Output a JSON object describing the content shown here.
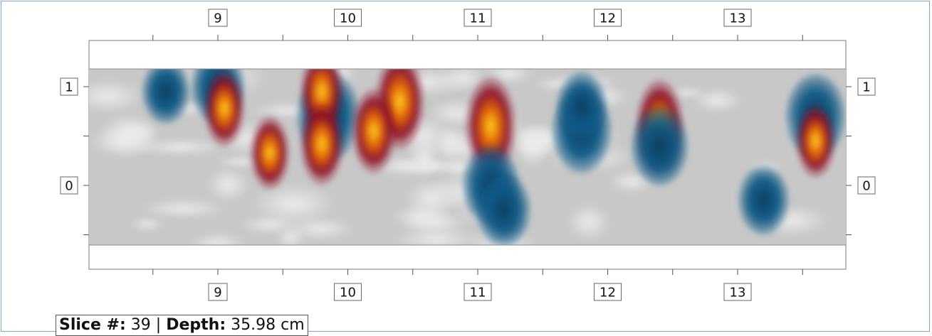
{
  "chart_data": {
    "type": "heatmap",
    "x_ticks": [
      9,
      10,
      11,
      12,
      13
    ],
    "y_ticks": [
      0,
      1
    ],
    "xlim": [
      7.55,
      13.75
    ],
    "ylim": [
      -0.58,
      1.18
    ],
    "colormap_colors": {
      "background": "#c8c8c8",
      "light": "#ececec",
      "negative": "#0f5a86",
      "negative_strong": "#0a3f63",
      "positive_mid": "#8e1126",
      "positive_high": "#e0620d",
      "positive_peak": "#ffd21a"
    },
    "anomalies": [
      {
        "x": 9.0,
        "y": 1.0,
        "polarity": "negative",
        "strength": 0.7
      },
      {
        "x": 9.05,
        "y": 0.78,
        "polarity": "positive",
        "strength": 0.6
      },
      {
        "x": 9.85,
        "y": 0.7,
        "polarity": "negative",
        "strength": 1.0
      },
      {
        "x": 9.8,
        "y": 0.95,
        "polarity": "positive",
        "strength": 0.7
      },
      {
        "x": 9.8,
        "y": 0.42,
        "polarity": "positive",
        "strength": 0.7
      },
      {
        "x": 9.4,
        "y": 0.33,
        "polarity": "positive",
        "strength": 0.55
      },
      {
        "x": 10.4,
        "y": 0.85,
        "polarity": "positive",
        "strength": 0.95
      },
      {
        "x": 10.2,
        "y": 0.55,
        "polarity": "positive",
        "strength": 0.75
      },
      {
        "x": 11.1,
        "y": 0.6,
        "polarity": "positive",
        "strength": 1.0
      },
      {
        "x": 11.1,
        "y": 0.0,
        "polarity": "negative",
        "strength": 0.8
      },
      {
        "x": 11.8,
        "y": 0.55,
        "polarity": "negative",
        "strength": 0.9
      },
      {
        "x": 11.8,
        "y": 0.8,
        "polarity": "negative",
        "strength": 0.6
      },
      {
        "x": 11.2,
        "y": -0.25,
        "polarity": "negative",
        "strength": 0.7
      },
      {
        "x": 12.4,
        "y": 0.6,
        "polarity": "positive",
        "strength": 0.9
      },
      {
        "x": 12.4,
        "y": 0.4,
        "polarity": "negative",
        "strength": 0.8
      },
      {
        "x": 13.6,
        "y": 0.7,
        "polarity": "negative",
        "strength": 0.9
      },
      {
        "x": 13.6,
        "y": 0.45,
        "polarity": "positive",
        "strength": 0.55
      },
      {
        "x": 13.2,
        "y": -0.15,
        "polarity": "negative",
        "strength": 0.6
      },
      {
        "x": 8.6,
        "y": 0.95,
        "polarity": "negative",
        "strength": 0.5
      }
    ]
  },
  "status": {
    "slice_label": "Slice #:",
    "slice_value": "39",
    "separator": "|",
    "depth_label": "Depth:",
    "depth_value": "35.98 cm"
  }
}
